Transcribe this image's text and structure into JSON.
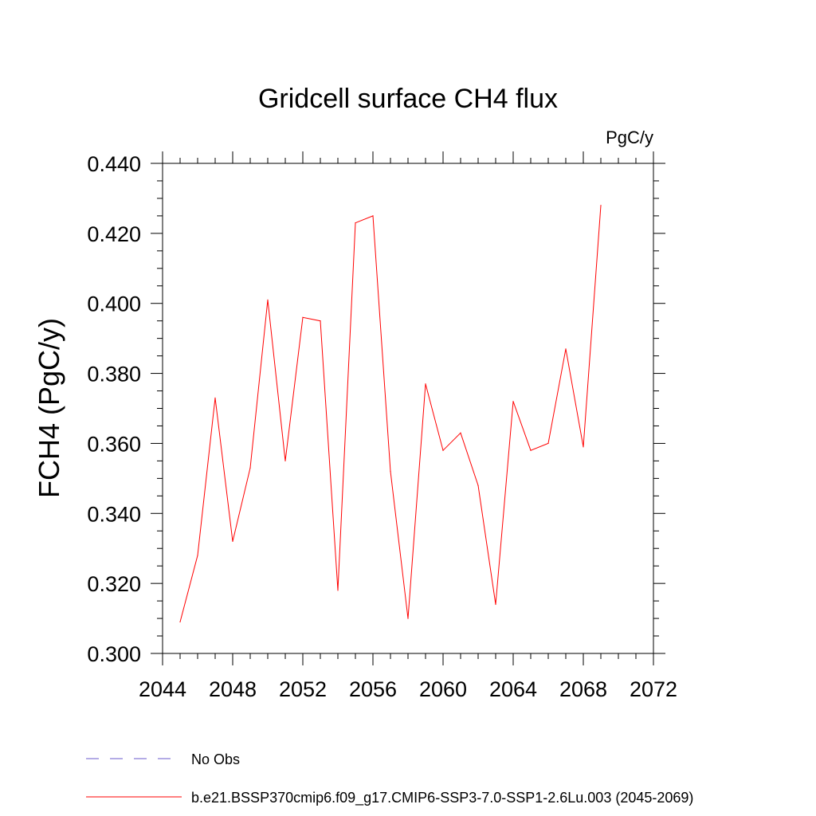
{
  "chart_data": {
    "type": "line",
    "title": "Gridcell surface CH4 flux",
    "units": "PgC/y",
    "ylabel": "FCH4  (PgC/y)",
    "xlabel": "",
    "xlim": [
      2044,
      2072
    ],
    "ylim": [
      0.3,
      0.44
    ],
    "x_ticks": [
      "2044",
      "2048",
      "2052",
      "2056",
      "2060",
      "2064",
      "2068",
      "2072"
    ],
    "y_ticks": [
      "0.300",
      "0.320",
      "0.340",
      "0.360",
      "0.380",
      "0.400",
      "0.420",
      "0.440"
    ],
    "grid": false,
    "legend_position": "bottom-left",
    "series": [
      {
        "name": "b.e21.BSSP370cmip6.f09_g17.CMIP6-SSP3-7.0-SSP1-2.6Lu.003 (2045-2069)",
        "color": "#ff0000",
        "style": "solid",
        "x": [
          2045,
          2046,
          2047,
          2048,
          2049,
          2050,
          2051,
          2052,
          2053,
          2054,
          2055,
          2056,
          2057,
          2058,
          2059,
          2060,
          2061,
          2062,
          2063,
          2064,
          2065,
          2066,
          2067,
          2068,
          2069
        ],
        "y": [
          0.309,
          0.328,
          0.373,
          0.332,
          0.353,
          0.401,
          0.355,
          0.396,
          0.395,
          0.318,
          0.423,
          0.425,
          0.352,
          0.31,
          0.377,
          0.358,
          0.363,
          0.348,
          0.314,
          0.372,
          0.358,
          0.36,
          0.387,
          0.359,
          0.428
        ]
      }
    ],
    "legend": [
      {
        "label": "No Obs",
        "color": "#6a5acd",
        "style": "dashed"
      },
      {
        "label": "b.e21.BSSP370cmip6.f09_g17.CMIP6-SSP3-7.0-SSP1-2.6Lu.003 (2045-2069)",
        "color": "#ff0000",
        "style": "solid"
      }
    ]
  }
}
